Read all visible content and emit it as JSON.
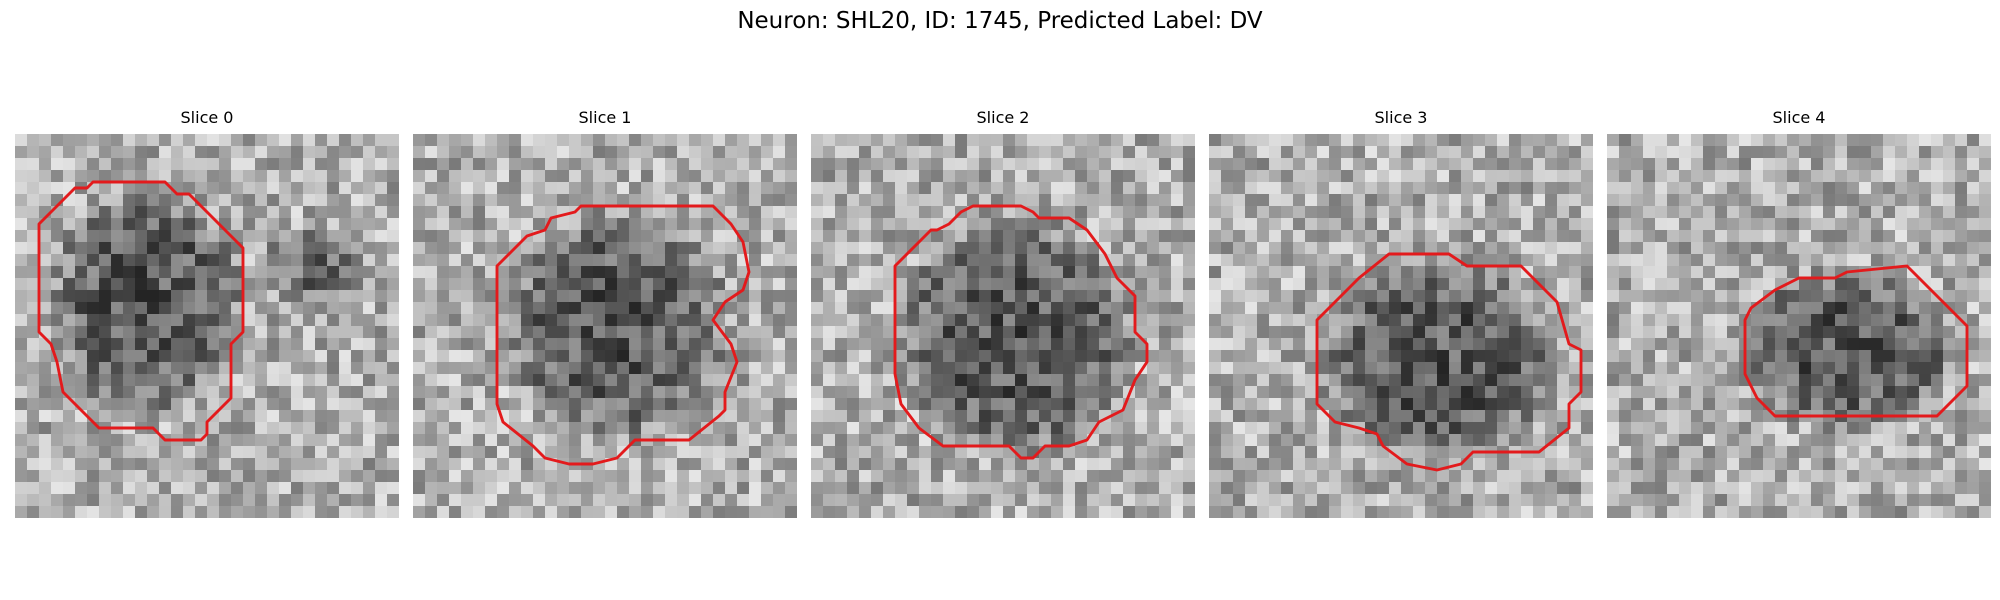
{
  "figure": {
    "title": "Neuron: SHL20, ID: 1745, Predicted Label: DV"
  },
  "contour_color": "#e31a1c",
  "panels": [
    {
      "title": "Slice 0"
    },
    {
      "title": "Slice 1"
    },
    {
      "title": "Slice 2"
    },
    {
      "title": "Slice 3"
    },
    {
      "title": "Slice 4"
    }
  ]
}
